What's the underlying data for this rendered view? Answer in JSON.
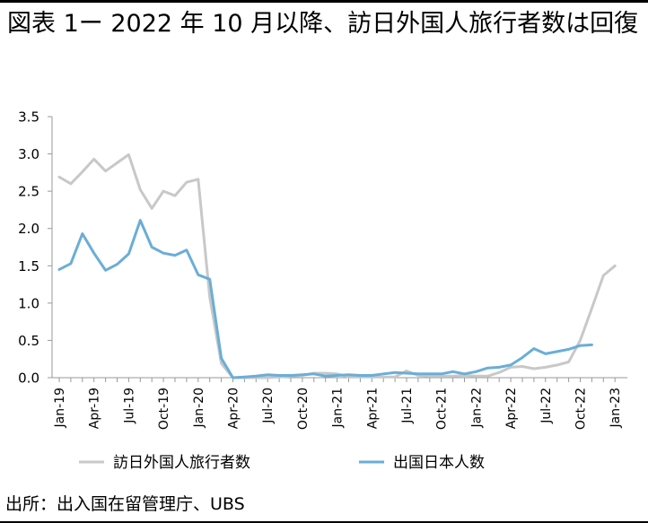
{
  "title": "図表 1ー 2022 年 10 月以降、訪日外国人旅行者数は回復",
  "source": "出所：出入国在留管理庁、UBS",
  "colors": {
    "series1": "#c8c8c8",
    "series2": "#6aaed6",
    "axis": "#999999",
    "text": "#000000"
  },
  "chart_data": {
    "type": "line",
    "title": "",
    "xlabel": "",
    "ylabel": "",
    "ylim": [
      0,
      3.5
    ],
    "yticks": [
      "0.0",
      "0.5",
      "1.0",
      "1.5",
      "2.0",
      "2.5",
      "3.0",
      "3.5"
    ],
    "x_tick_labels": [
      "Jan-19",
      "Apr-19",
      "Jul-19",
      "Oct-19",
      "Jan-20",
      "Apr-20",
      "Jul-20",
      "Oct-20",
      "Jan-21",
      "Apr-21",
      "Jul-21",
      "Oct-21",
      "Jan-22",
      "Apr-22",
      "Jul-22",
      "Oct-22",
      "Jan-23"
    ],
    "x_tick_every": 3,
    "grid": false,
    "legend_position": "bottom",
    "series": [
      {
        "name": "訪日外国人旅行者数",
        "values": [
          2.69,
          2.6,
          2.76,
          2.93,
          2.77,
          2.88,
          2.99,
          2.52,
          2.27,
          2.5,
          2.44,
          2.62,
          2.66,
          1.08,
          0.19,
          0.0,
          0.0,
          0.0,
          0.0,
          0.01,
          0.02,
          0.03,
          0.06,
          0.06,
          0.05,
          0.01,
          0.01,
          0.01,
          0.01,
          0.01,
          0.09,
          0.03,
          0.02,
          0.02,
          0.02,
          0.03,
          0.02,
          0.02,
          0.07,
          0.14,
          0.15,
          0.12,
          0.14,
          0.17,
          0.21,
          0.5,
          0.93,
          1.37,
          1.5
        ]
      },
      {
        "name": "出国日本人数",
        "values": [
          1.45,
          1.53,
          1.93,
          1.67,
          1.44,
          1.52,
          1.66,
          2.11,
          1.75,
          1.67,
          1.64,
          1.71,
          1.38,
          1.32,
          0.26,
          0.0,
          0.01,
          0.02,
          0.04,
          0.03,
          0.03,
          0.04,
          0.05,
          0.02,
          0.03,
          0.04,
          0.03,
          0.03,
          0.05,
          0.07,
          0.06,
          0.05,
          0.05,
          0.05,
          0.08,
          0.05,
          0.08,
          0.13,
          0.14,
          0.17,
          0.27,
          0.39,
          0.32,
          0.35,
          0.38,
          0.43,
          0.44
        ]
      }
    ]
  }
}
